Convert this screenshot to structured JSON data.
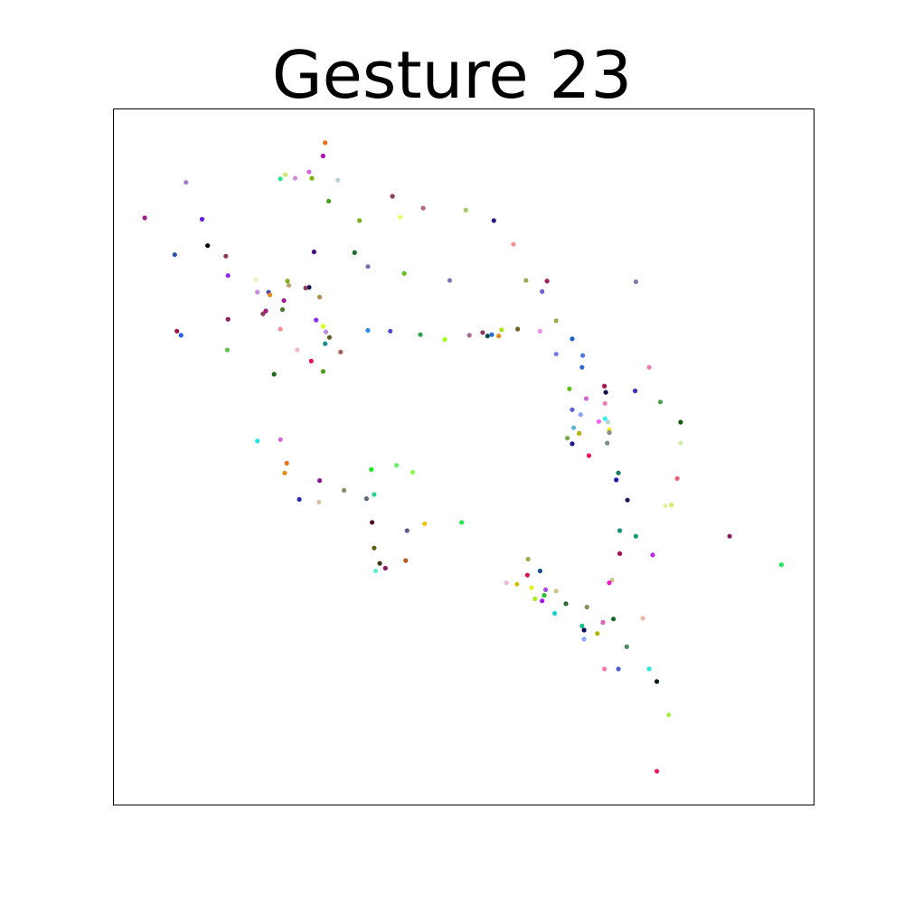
{
  "chart_data": {
    "type": "scatter",
    "title": "Gesture 23",
    "xlabel": "",
    "ylabel": "",
    "xlim": [
      0,
      100
    ],
    "ylim": [
      0,
      100
    ],
    "grid": false,
    "axes_ticks": false,
    "points": [
      {
        "x": 30.2,
        "y": 95.2,
        "color": "#e8731c"
      },
      {
        "x": 29.9,
        "y": 93.3,
        "color": "#b30cb3"
      },
      {
        "x": 27.9,
        "y": 91.0,
        "color": "#d466d4"
      },
      {
        "x": 24.5,
        "y": 90.6,
        "color": "#ccf066"
      },
      {
        "x": 25.9,
        "y": 90.1,
        "color": "#d98cd9"
      },
      {
        "x": 23.8,
        "y": 90.0,
        "color": "#2fe88a"
      },
      {
        "x": 28.3,
        "y": 90.1,
        "color": "#7ab30c"
      },
      {
        "x": 32.0,
        "y": 89.8,
        "color": "#b8d4d9"
      },
      {
        "x": 10.3,
        "y": 89.5,
        "color": "#a67ad4"
      },
      {
        "x": 30.7,
        "y": 86.8,
        "color": "#4d9e1a"
      },
      {
        "x": 39.8,
        "y": 87.5,
        "color": "#8c3a5e"
      },
      {
        "x": 44.2,
        "y": 85.8,
        "color": "#b35e8c"
      },
      {
        "x": 50.3,
        "y": 85.5,
        "color": "#a6cc66"
      },
      {
        "x": 4.4,
        "y": 84.4,
        "color": "#a11a8c"
      },
      {
        "x": 12.6,
        "y": 84.2,
        "color": "#6b1ae8"
      },
      {
        "x": 35.1,
        "y": 84.0,
        "color": "#7ab31a"
      },
      {
        "x": 40.9,
        "y": 84.5,
        "color": "#e6ff66"
      },
      {
        "x": 54.3,
        "y": 84.0,
        "color": "#2a1a8c"
      },
      {
        "x": 13.4,
        "y": 80.4,
        "color": "#000000"
      },
      {
        "x": 57.1,
        "y": 80.6,
        "color": "#f59090"
      },
      {
        "x": 8.7,
        "y": 79.1,
        "color": "#2a4db3"
      },
      {
        "x": 16.0,
        "y": 78.9,
        "color": "#8c3a5e"
      },
      {
        "x": 28.6,
        "y": 79.5,
        "color": "#4a0c8c"
      },
      {
        "x": 34.4,
        "y": 79.4,
        "color": "#1a6b2a"
      },
      {
        "x": 36.3,
        "y": 77.4,
        "color": "#7a6bb3"
      },
      {
        "x": 41.5,
        "y": 76.4,
        "color": "#5ec21a"
      },
      {
        "x": 16.3,
        "y": 76.1,
        "color": "#8c2ae8"
      },
      {
        "x": 20.3,
        "y": 75.5,
        "color": "#f0f0cc"
      },
      {
        "x": 24.8,
        "y": 75.3,
        "color": "#7ab31a"
      },
      {
        "x": 25.0,
        "y": 74.7,
        "color": "#c2a666"
      },
      {
        "x": 27.9,
        "y": 74.4,
        "color": "#0c0c4d"
      },
      {
        "x": 27.4,
        "y": 74.3,
        "color": "#8c3a5e"
      },
      {
        "x": 20.5,
        "y": 73.7,
        "color": "#c28cd9"
      },
      {
        "x": 22.1,
        "y": 73.7,
        "color": "#4d4db3"
      },
      {
        "x": 22.3,
        "y": 73.3,
        "color": "#e88a1a"
      },
      {
        "x": 29.4,
        "y": 73.0,
        "color": "#b38c4d"
      },
      {
        "x": 24.3,
        "y": 72.5,
        "color": "#a11a8c"
      },
      {
        "x": 24.1,
        "y": 71.2,
        "color": "#4d7a2a"
      },
      {
        "x": 21.7,
        "y": 71.0,
        "color": "#a11a8c"
      },
      {
        "x": 21.3,
        "y": 70.6,
        "color": "#8c3a5e"
      },
      {
        "x": 48.0,
        "y": 75.4,
        "color": "#7a7ab3"
      },
      {
        "x": 58.9,
        "y": 75.4,
        "color": "#a6a64d"
      },
      {
        "x": 61.9,
        "y": 75.3,
        "color": "#a11a5e"
      },
      {
        "x": 61.2,
        "y": 73.8,
        "color": "#7a5ed4"
      },
      {
        "x": 74.6,
        "y": 75.2,
        "color": "#7a7ab3"
      },
      {
        "x": 16.3,
        "y": 69.8,
        "color": "#8c1a5e"
      },
      {
        "x": 28.9,
        "y": 69.7,
        "color": "#8c2ae8"
      },
      {
        "x": 9.0,
        "y": 68.1,
        "color": "#a1124a"
      },
      {
        "x": 9.6,
        "y": 67.5,
        "color": "#2a5ef0"
      },
      {
        "x": 23.8,
        "y": 68.4,
        "color": "#f09090"
      },
      {
        "x": 29.9,
        "y": 68.8,
        "color": "#d9ff1a"
      },
      {
        "x": 30.3,
        "y": 68.0,
        "color": "#c28cd9"
      },
      {
        "x": 30.8,
        "y": 67.2,
        "color": "#5e5e1a"
      },
      {
        "x": 30.2,
        "y": 66.3,
        "color": "#1a8c8c"
      },
      {
        "x": 26.2,
        "y": 65.4,
        "color": "#f0b8d4"
      },
      {
        "x": 16.2,
        "y": 65.4,
        "color": "#5ec24d"
      },
      {
        "x": 32.4,
        "y": 65.1,
        "color": "#a65e5e"
      },
      {
        "x": 28.2,
        "y": 63.8,
        "color": "#f0125e"
      },
      {
        "x": 29.9,
        "y": 62.3,
        "color": "#4d9e1a"
      },
      {
        "x": 22.9,
        "y": 61.9,
        "color": "#1a6b1a"
      },
      {
        "x": 36.3,
        "y": 68.2,
        "color": "#2a8cf0"
      },
      {
        "x": 39.5,
        "y": 68.1,
        "color": "#4d4dd4"
      },
      {
        "x": 43.8,
        "y": 67.6,
        "color": "#2aa14d"
      },
      {
        "x": 47.3,
        "y": 66.9,
        "color": "#a6ff1a"
      },
      {
        "x": 50.8,
        "y": 67.5,
        "color": "#a66b8c"
      },
      {
        "x": 52.7,
        "y": 67.9,
        "color": "#8c3a5e"
      },
      {
        "x": 53.4,
        "y": 67.4,
        "color": "#0c4d4d"
      },
      {
        "x": 54.0,
        "y": 67.6,
        "color": "#2a6bd4"
      },
      {
        "x": 55.0,
        "y": 67.4,
        "color": "#e88a1a"
      },
      {
        "x": 55.4,
        "y": 68.3,
        "color": "#a6e81a"
      },
      {
        "x": 57.7,
        "y": 68.4,
        "color": "#7a5e2a"
      },
      {
        "x": 60.9,
        "y": 68.1,
        "color": "#f08cf0"
      },
      {
        "x": 63.2,
        "y": 69.6,
        "color": "#a6a64d"
      },
      {
        "x": 65.5,
        "y": 67.0,
        "color": "#1a5ec2"
      },
      {
        "x": 63.2,
        "y": 64.8,
        "color": "#7a7af0"
      },
      {
        "x": 67.0,
        "y": 64.6,
        "color": "#4d7ae8"
      },
      {
        "x": 66.9,
        "y": 62.9,
        "color": "#2a6bd4"
      },
      {
        "x": 76.5,
        "y": 62.9,
        "color": "#f07ab3"
      },
      {
        "x": 65.1,
        "y": 59.8,
        "color": "#5ec21a"
      },
      {
        "x": 70.1,
        "y": 60.2,
        "color": "#a1124a"
      },
      {
        "x": 70.3,
        "y": 59.3,
        "color": "#0c0c4d"
      },
      {
        "x": 74.5,
        "y": 59.5,
        "color": "#4d2ac2"
      },
      {
        "x": 67.5,
        "y": 58.4,
        "color": "#d466d4"
      },
      {
        "x": 70.2,
        "y": 57.7,
        "color": "#f07ab3"
      },
      {
        "x": 78.1,
        "y": 57.9,
        "color": "#4da14d"
      },
      {
        "x": 65.5,
        "y": 56.8,
        "color": "#5e5ed4"
      },
      {
        "x": 66.7,
        "y": 56.1,
        "color": "#8ca6f0"
      },
      {
        "x": 69.3,
        "y": 55.1,
        "color": "#f066f0"
      },
      {
        "x": 70.2,
        "y": 55.5,
        "color": "#30f0f0"
      },
      {
        "x": 70.6,
        "y": 55.0,
        "color": "#b8d4d9"
      },
      {
        "x": 70.8,
        "y": 53.9,
        "color": "#f0e81a"
      },
      {
        "x": 65.7,
        "y": 54.2,
        "color": "#5eb3d9"
      },
      {
        "x": 66.5,
        "y": 53.4,
        "color": "#b3b30c"
      },
      {
        "x": 70.8,
        "y": 53.5,
        "color": "#8c8c8c"
      },
      {
        "x": 64.8,
        "y": 52.7,
        "color": "#7aa64d"
      },
      {
        "x": 65.5,
        "y": 51.9,
        "color": "#1a1a8c"
      },
      {
        "x": 70.5,
        "y": 52.0,
        "color": "#7a8c8c"
      },
      {
        "x": 81.0,
        "y": 55.0,
        "color": "#0c5e0c"
      },
      {
        "x": 81.0,
        "y": 52.0,
        "color": "#ccf0a6"
      },
      {
        "x": 67.9,
        "y": 50.2,
        "color": "#f0125e"
      },
      {
        "x": 72.1,
        "y": 47.7,
        "color": "#1a7a5e"
      },
      {
        "x": 71.8,
        "y": 46.7,
        "color": "#1a1ab3"
      },
      {
        "x": 80.5,
        "y": 46.9,
        "color": "#f05e7a"
      },
      {
        "x": 73.4,
        "y": 43.8,
        "color": "#1a1a5e"
      },
      {
        "x": 79.7,
        "y": 43.1,
        "color": "#ccf066"
      },
      {
        "x": 78.8,
        "y": 43.0,
        "color": "#e8f0a6"
      },
      {
        "x": 72.3,
        "y": 39.4,
        "color": "#1a8c7a"
      },
      {
        "x": 74.6,
        "y": 38.6,
        "color": "#0c9e6b"
      },
      {
        "x": 88.0,
        "y": 38.6,
        "color": "#8c1a5e"
      },
      {
        "x": 95.4,
        "y": 34.5,
        "color": "#1ae84d"
      },
      {
        "x": 72.3,
        "y": 36.1,
        "color": "#a1124a"
      },
      {
        "x": 77.0,
        "y": 35.9,
        "color": "#b32ae8"
      },
      {
        "x": 71.2,
        "y": 32.3,
        "color": "#d4c28c"
      },
      {
        "x": 70.8,
        "y": 31.9,
        "color": "#e81ac2"
      },
      {
        "x": 20.5,
        "y": 52.3,
        "color": "#1ae8e8"
      },
      {
        "x": 23.8,
        "y": 52.5,
        "color": "#d466d4"
      },
      {
        "x": 24.7,
        "y": 49.1,
        "color": "#e8731c"
      },
      {
        "x": 24.4,
        "y": 47.7,
        "color": "#e88a1a"
      },
      {
        "x": 29.4,
        "y": 46.6,
        "color": "#8c1a8c"
      },
      {
        "x": 26.5,
        "y": 43.9,
        "color": "#2a2ab3"
      },
      {
        "x": 29.3,
        "y": 43.5,
        "color": "#d4c2a6"
      },
      {
        "x": 32.9,
        "y": 45.2,
        "color": "#8c8c5e"
      },
      {
        "x": 36.8,
        "y": 48.2,
        "color": "#1ae81a"
      },
      {
        "x": 40.4,
        "y": 48.8,
        "color": "#66f066"
      },
      {
        "x": 42.7,
        "y": 47.8,
        "color": "#8cff4d"
      },
      {
        "x": 37.2,
        "y": 44.6,
        "color": "#2ad48c"
      },
      {
        "x": 36.1,
        "y": 44.0,
        "color": "#5e6b7a"
      },
      {
        "x": 36.9,
        "y": 40.6,
        "color": "#4d0c2a"
      },
      {
        "x": 41.9,
        "y": 39.4,
        "color": "#5e5e8c"
      },
      {
        "x": 44.4,
        "y": 40.4,
        "color": "#f0c20c"
      },
      {
        "x": 49.7,
        "y": 40.6,
        "color": "#1ae84d"
      },
      {
        "x": 37.2,
        "y": 36.9,
        "color": "#5e5e0c"
      },
      {
        "x": 41.7,
        "y": 35.1,
        "color": "#b35e1a"
      },
      {
        "x": 38.0,
        "y": 34.7,
        "color": "#3a3a0c"
      },
      {
        "x": 38.8,
        "y": 34.0,
        "color": "#8c1a5e"
      },
      {
        "x": 37.4,
        "y": 33.6,
        "color": "#5ef0d4"
      },
      {
        "x": 59.2,
        "y": 35.3,
        "color": "#a6a64d"
      },
      {
        "x": 60.9,
        "y": 33.6,
        "color": "#1a4d8c"
      },
      {
        "x": 59.1,
        "y": 33.0,
        "color": "#d4125e"
      },
      {
        "x": 56.1,
        "y": 31.9,
        "color": "#f0b8d9"
      },
      {
        "x": 57.6,
        "y": 31.7,
        "color": "#d4c20c"
      },
      {
        "x": 59.7,
        "y": 31.2,
        "color": "#e8f01a"
      },
      {
        "x": 61.7,
        "y": 30.9,
        "color": "#a64de8"
      },
      {
        "x": 63.2,
        "y": 30.7,
        "color": "#d4c28c"
      },
      {
        "x": 61.5,
        "y": 30.1,
        "color": "#2ac22a"
      },
      {
        "x": 61.2,
        "y": 29.3,
        "color": "#a61ae8"
      },
      {
        "x": 60.2,
        "y": 29.6,
        "color": "#a6f01a"
      },
      {
        "x": 64.6,
        "y": 28.9,
        "color": "+2a6b2a"
      },
      {
        "x": 63.0,
        "y": 27.5,
        "color": "#1ad4d4"
      },
      {
        "x": 67.6,
        "y": 28.4,
        "color": "#8c8c5e"
      },
      {
        "x": 71.4,
        "y": 26.7,
        "color": "#1a6b2a"
      },
      {
        "x": 75.6,
        "y": 26.8,
        "color": "#e8b8a6"
      },
      {
        "x": 69.9,
        "y": 26.2,
        "color": "#d466b3"
      },
      {
        "x": 66.9,
        "y": 25.7,
        "color": "#1ac28c"
      },
      {
        "x": 67.2,
        "y": 25.1,
        "color": "#0c0c5e"
      },
      {
        "x": 69.1,
        "y": 24.6,
        "color": "#b3b30c"
      },
      {
        "x": 67.2,
        "y": 23.8,
        "color": "#8ca6f0"
      },
      {
        "x": 73.3,
        "y": 22.7,
        "color": "#4d8c5e"
      },
      {
        "x": 70.1,
        "y": 19.5,
        "color": "#f07ab3"
      },
      {
        "x": 72.1,
        "y": 19.5,
        "color": "#4d5ec2"
      },
      {
        "x": 76.5,
        "y": 19.5,
        "color": "#30e8d4"
      },
      {
        "x": 77.6,
        "y": 17.7,
        "color": "#0c1a1a"
      },
      {
        "x": 79.3,
        "y": 12.9,
        "color": "#a6f04d"
      },
      {
        "x": 77.6,
        "y": 4.8,
        "color": "#f01a6b"
      }
    ]
  }
}
